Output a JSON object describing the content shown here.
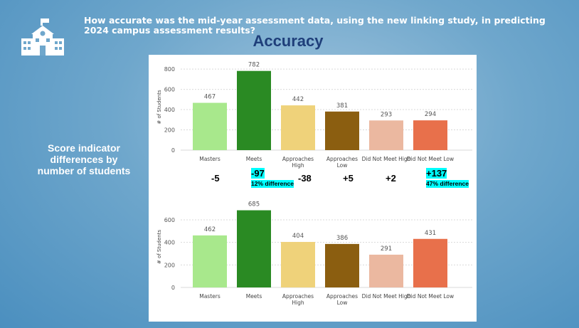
{
  "header": {
    "question": "How accurate was the mid-year assessment data, using the new linking study, in predicting 2024 campus assessment results?",
    "title": "Accuracy"
  },
  "side_label": "Score indicator differences by number of students",
  "icons": {
    "school": "school-building-icon"
  },
  "colors": {
    "title": "#1f3f7a",
    "highlight": "#00ffff",
    "bars": [
      "#a8e88c",
      "#2a8a23",
      "#efd27a",
      "#8b5e10",
      "#ebb8a0",
      "#e8704b"
    ]
  },
  "differences": [
    {
      "value": "-5",
      "note": "",
      "highlight": false
    },
    {
      "value": "-97",
      "note": "12% difference",
      "highlight": true
    },
    {
      "value": "-38",
      "note": "",
      "highlight": false
    },
    {
      "value": "+5",
      "note": "",
      "highlight": false
    },
    {
      "value": "+2",
      "note": "",
      "highlight": false
    },
    {
      "value": "+137",
      "note": "47% difference",
      "highlight": true
    }
  ],
  "chart_data": [
    {
      "type": "bar",
      "categories": [
        "Masters",
        "Meets",
        "Approaches High",
        "Approaches Low",
        "Did Not Meet High",
        "Did Not Meet Low"
      ],
      "values": [
        467,
        782,
        442,
        381,
        293,
        294
      ],
      "ylabel": "# of Students",
      "ylim": [
        0,
        850
      ],
      "yticks": [
        0,
        200,
        400,
        600,
        800
      ],
      "grid": true
    },
    {
      "type": "bar",
      "categories": [
        "Masters",
        "Meets",
        "Approaches High",
        "Approaches Low",
        "Did Not Meet High",
        "Did Not Meet Low"
      ],
      "values": [
        462,
        685,
        404,
        386,
        291,
        431
      ],
      "ylabel": "# of Students",
      "ylim": [
        0,
        720
      ],
      "yticks": [
        0,
        200,
        400,
        600
      ],
      "grid": true
    }
  ]
}
